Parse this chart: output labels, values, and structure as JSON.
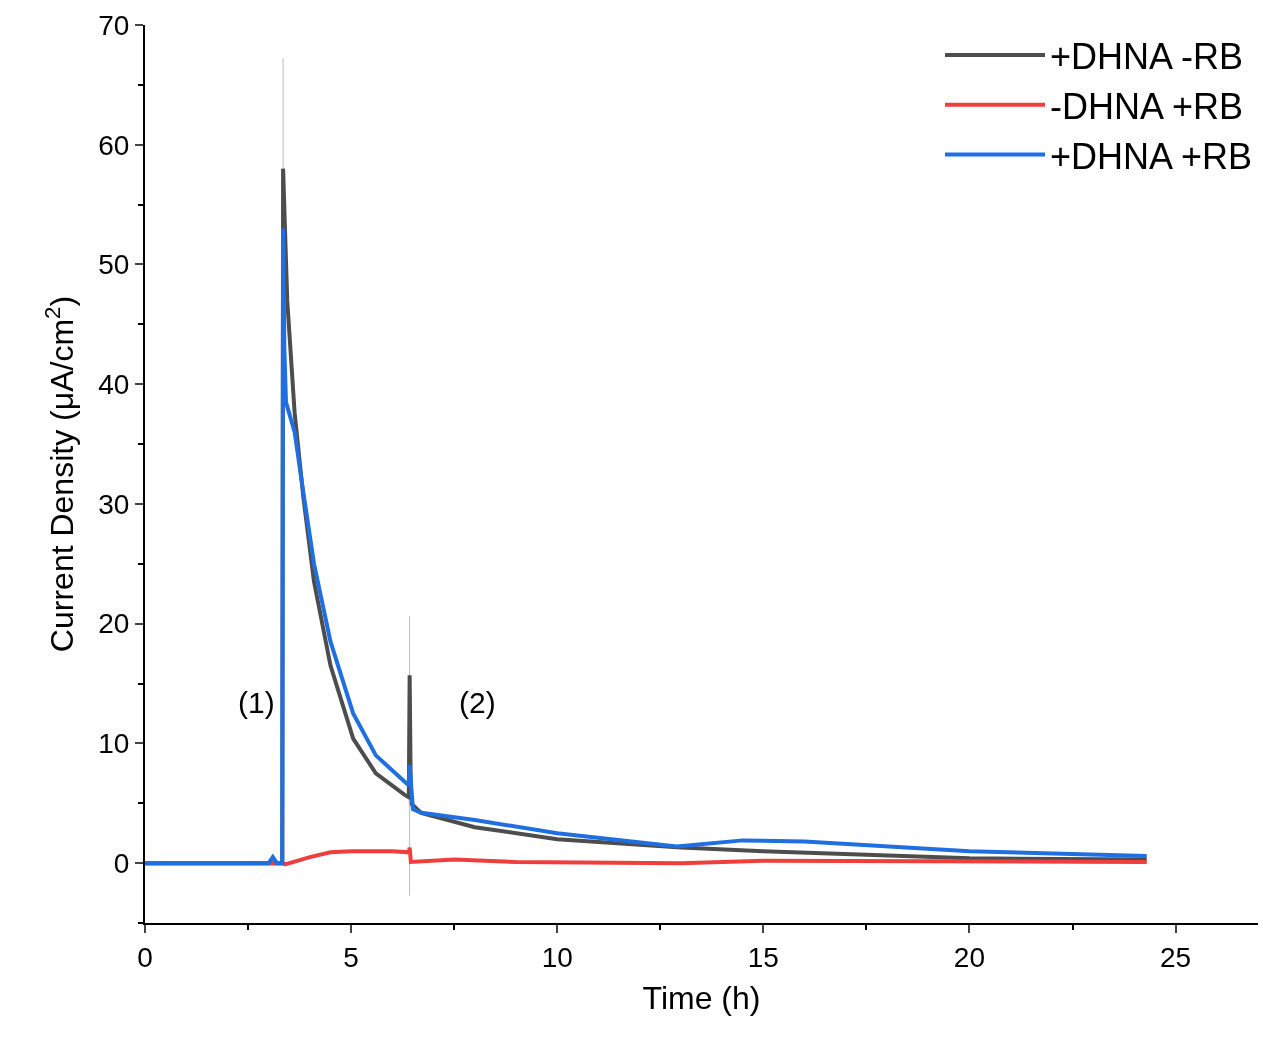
{
  "chart_data": {
    "type": "line",
    "xlabel": "Time (h)",
    "ylabel": "Current Density (μA/cm$^{2}$)",
    "xlim": [
      0,
      27
    ],
    "xticks": [
      0,
      5,
      10,
      15,
      20,
      25
    ],
    "ylim": [
      -5,
      70
    ],
    "yticks": [
      0,
      10,
      20,
      30,
      40,
      50,
      60,
      70
    ],
    "legend": "top right",
    "marker": "none",
    "line_style": "solid",
    "annotations": [
      "(1)",
      "(2)"
    ],
    "series": [
      {
        "name": "+DHNA -RB",
        "color": "#4d4d4d",
        "x": [
          0,
          3.2,
          3.33,
          3.35,
          3.45,
          3.63,
          3.84,
          4.1,
          4.5,
          5.05,
          5.6,
          6.3,
          6.4,
          6.42,
          6.45,
          6.7,
          8,
          10,
          13,
          15,
          20,
          24.3
        ],
        "values": [
          0,
          0,
          0,
          58,
          47,
          37.6,
          30.6,
          23.5,
          16.5,
          10.4,
          7.5,
          5.7,
          5.5,
          15.7,
          5.0,
          4.2,
          3.0,
          2.0,
          1.3,
          1.0,
          0.4,
          0.3
        ],
        "errors": [
          null,
          null,
          null,
          9.2,
          null,
          null,
          null,
          null,
          null,
          null,
          null,
          null,
          null,
          4.9,
          null,
          null,
          null,
          null,
          null,
          null,
          null,
          null
        ]
      },
      {
        "name": "-DHNA +RB",
        "color": "#ef3e3e",
        "x": [
          0,
          3.35,
          3.4,
          4,
          4.5,
          5,
          6,
          6.4,
          6.42,
          6.45,
          7.5,
          9,
          13,
          15,
          24.3
        ],
        "values": [
          0,
          0,
          -0.1,
          0.5,
          0.9,
          1.0,
          1.0,
          0.9,
          1.3,
          0.1,
          0.3,
          0.1,
          0.0,
          0.2,
          0.1
        ],
        "errors": [
          null,
          null,
          null,
          null,
          null,
          null,
          null,
          null,
          4.0,
          null,
          null,
          null,
          null,
          null,
          null
        ]
      },
      {
        "name": "+DHNA +RB",
        "color": "#1f6fe0",
        "x": [
          0,
          3.0,
          3.1,
          3.2,
          3.33,
          3.35,
          3.38,
          3.42,
          3.63,
          3.84,
          4.1,
          4.5,
          5.05,
          5.6,
          6.3,
          6.4,
          6.42,
          6.5,
          6.7,
          8,
          10,
          12.9,
          14.5,
          16,
          20,
          24.3
        ],
        "values": [
          0,
          0,
          0.5,
          0,
          0,
          53,
          43,
          38.5,
          36,
          31,
          25,
          18.5,
          12.5,
          9,
          6.8,
          6.5,
          8.2,
          4.5,
          4.2,
          3.6,
          2.5,
          1.4,
          1.9,
          1.8,
          1.0,
          0.6
        ]
      }
    ]
  }
}
